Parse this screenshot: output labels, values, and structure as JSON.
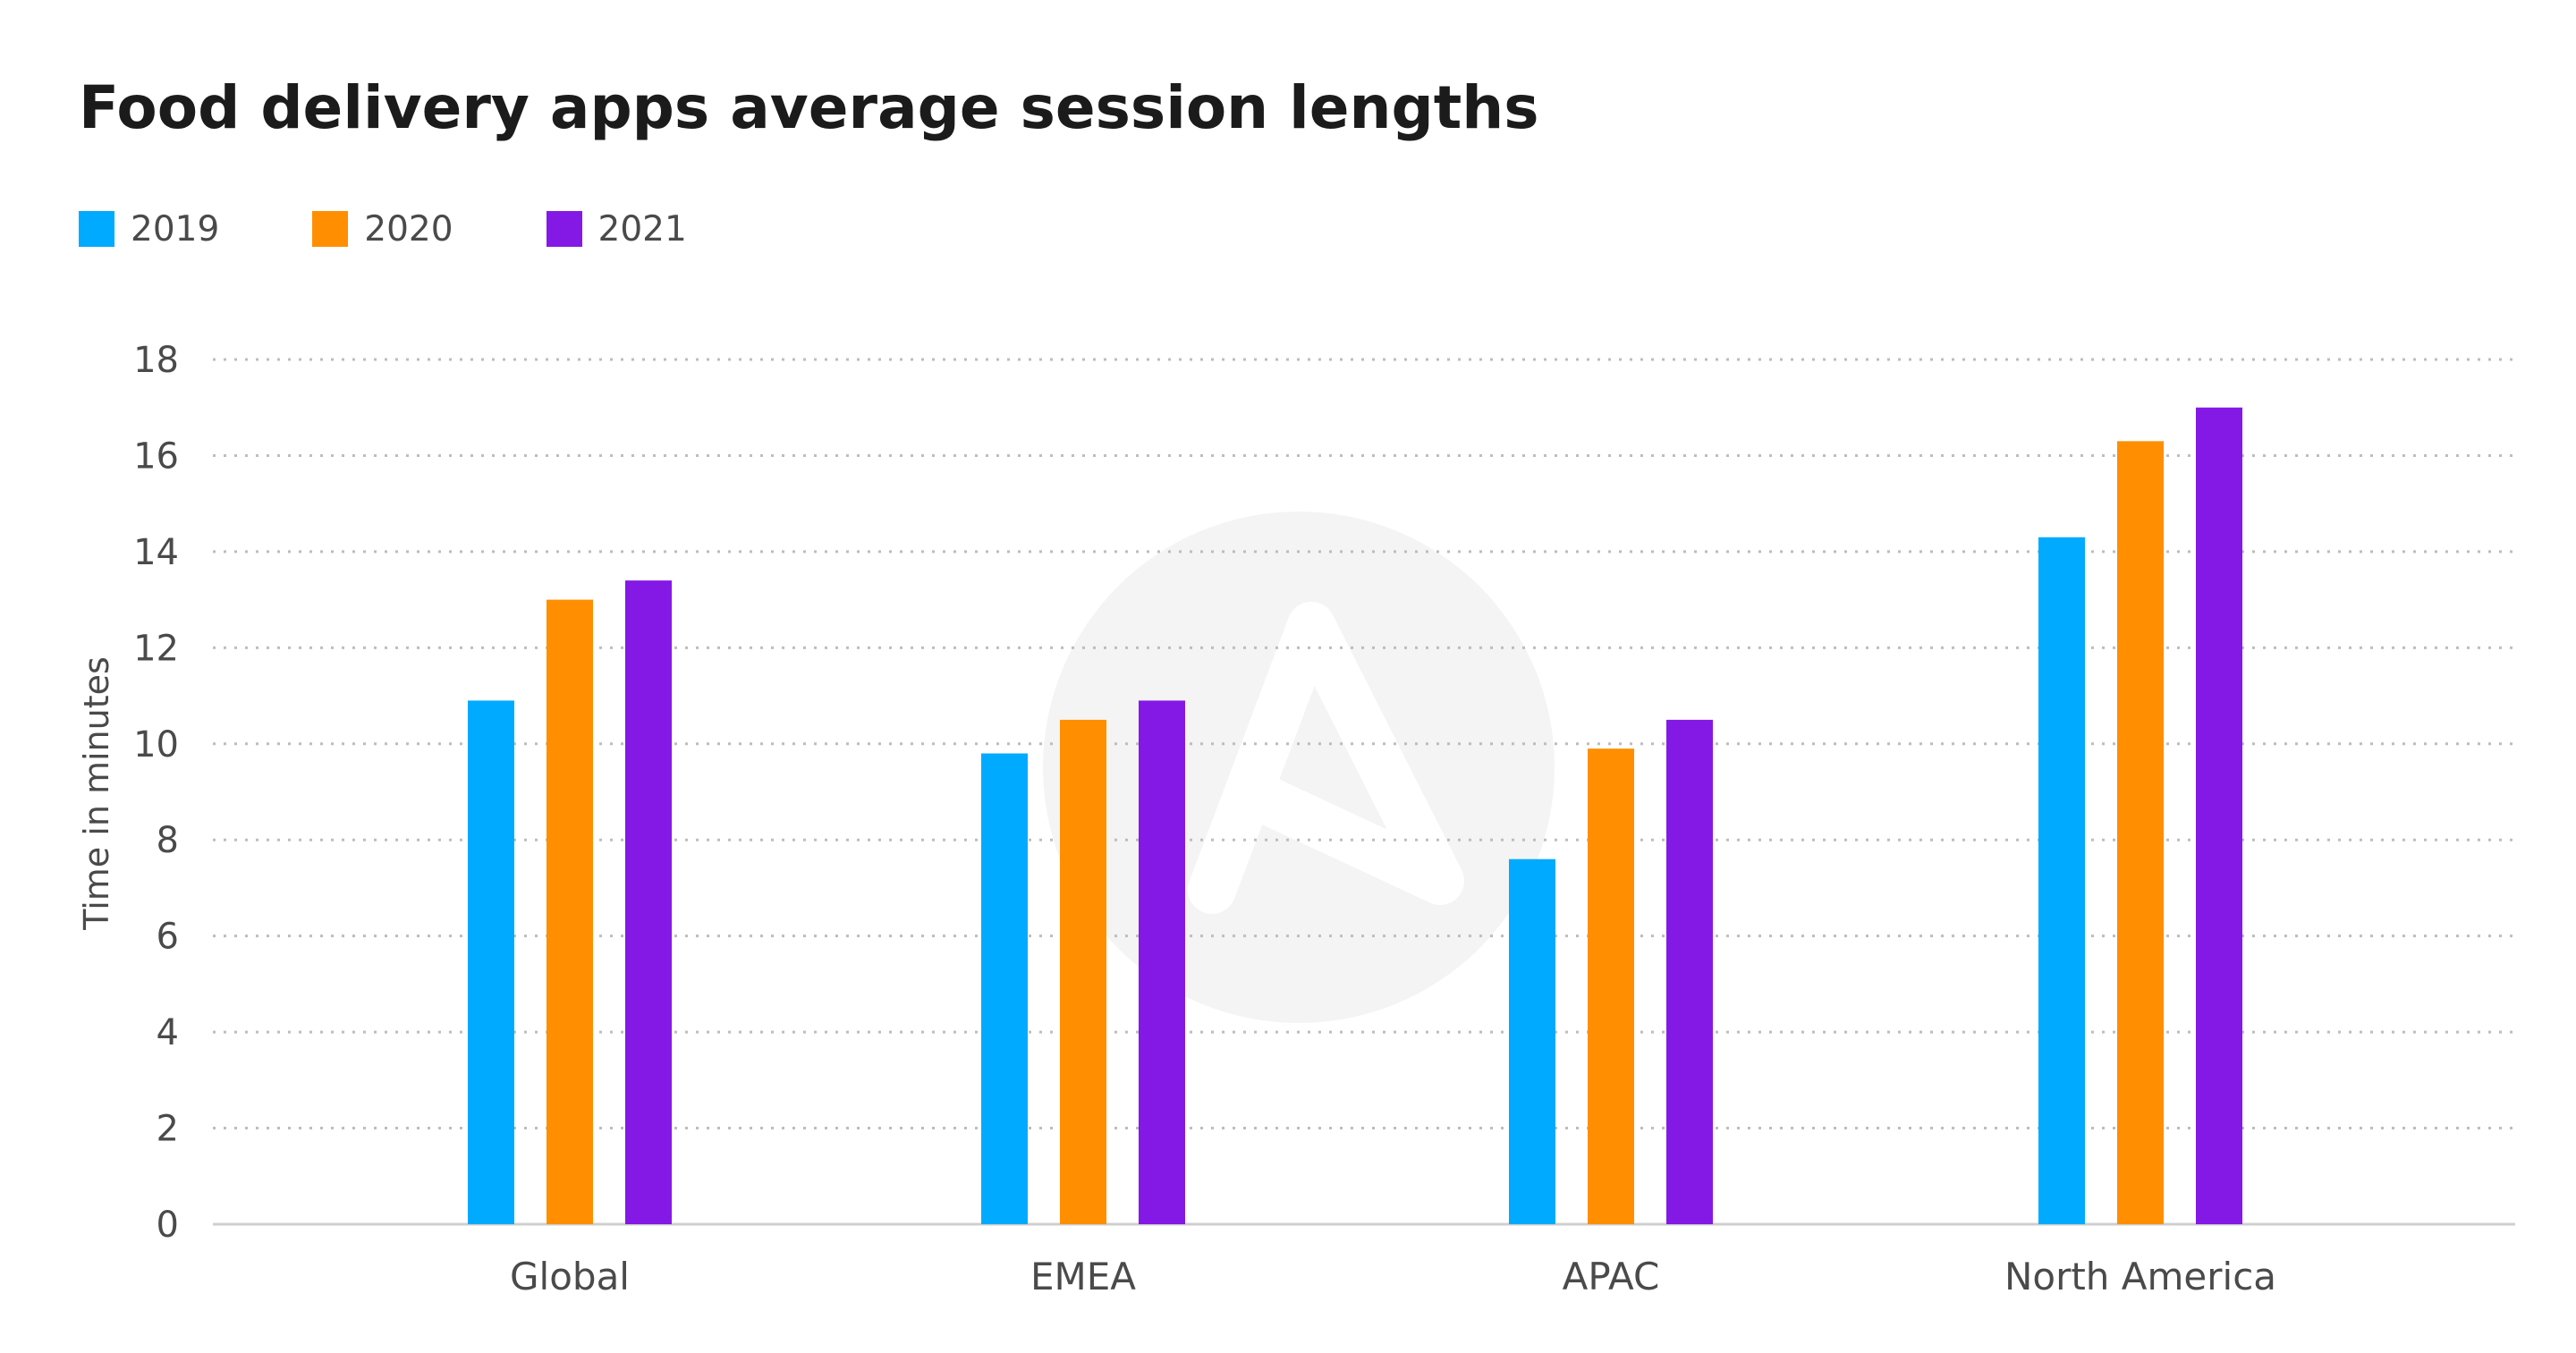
{
  "chart_data": {
    "type": "bar",
    "title": "Food delivery apps average session lengths",
    "xlabel": "",
    "ylabel": "Time in minutes",
    "categories": [
      "Global",
      "EMEA",
      "APAC",
      "North America"
    ],
    "series": [
      {
        "name": "2019",
        "color": "#00aaff",
        "values": [
          10.9,
          9.8,
          7.6,
          14.3
        ]
      },
      {
        "name": "2020",
        "color": "#ff8f00",
        "values": [
          13.0,
          10.5,
          9.9,
          16.3
        ]
      },
      {
        "name": "2021",
        "color": "#8419e6",
        "values": [
          13.4,
          10.9,
          10.5,
          17.0
        ]
      }
    ],
    "ylim": [
      0,
      18
    ],
    "yticks": [
      "0",
      "2",
      "4",
      "6",
      "8",
      "10",
      "12",
      "14",
      "16",
      "18"
    ],
    "grid": true,
    "legend": "top-left"
  }
}
